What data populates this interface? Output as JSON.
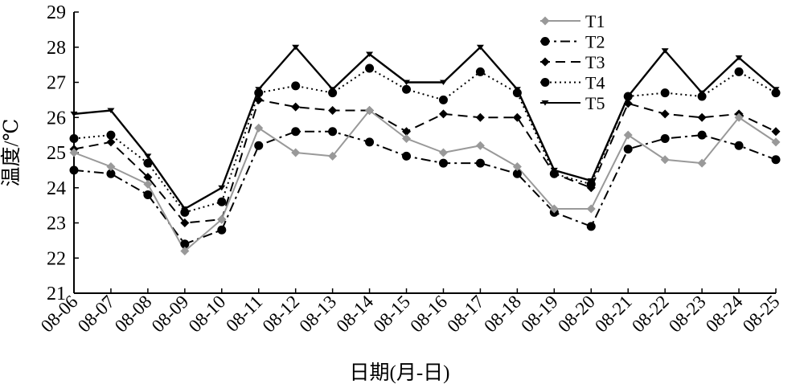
{
  "chart_data": {
    "type": "line",
    "xlabel": "日期(月-日)",
    "ylabel": "温度/℃",
    "ylim": [
      21,
      29
    ],
    "yticks": [
      21,
      22,
      23,
      24,
      25,
      26,
      27,
      28,
      29
    ],
    "categories": [
      "08-06",
      "08-07",
      "08-08",
      "08-09",
      "08-10",
      "08-11",
      "08-12",
      "08-13",
      "08-14",
      "08-15",
      "08-16",
      "08-17",
      "08-18",
      "08-19",
      "08-20",
      "08-21",
      "08-22",
      "08-23",
      "08-24",
      "08-25"
    ],
    "grid": false,
    "legend_position": "top-right",
    "series": [
      {
        "name": "T1",
        "color": "#999999",
        "line_style": "solid",
        "marker": "diamond",
        "values": [
          25.0,
          24.6,
          24.1,
          22.2,
          23.1,
          25.7,
          25.0,
          24.9,
          26.2,
          25.4,
          25.0,
          25.2,
          24.6,
          23.4,
          23.4,
          25.5,
          24.8,
          24.7,
          26.0,
          25.3
        ]
      },
      {
        "name": "T2",
        "color": "#000000",
        "line_style": "dashdot",
        "marker": "circle",
        "values": [
          24.5,
          24.4,
          23.8,
          22.4,
          22.8,
          25.2,
          25.6,
          25.6,
          25.3,
          24.9,
          24.7,
          24.7,
          24.4,
          23.3,
          22.9,
          25.1,
          25.4,
          25.5,
          25.2,
          24.8
        ]
      },
      {
        "name": "T3",
        "color": "#000000",
        "line_style": "dashed",
        "marker": "diamond",
        "values": [
          25.1,
          25.3,
          24.3,
          23.0,
          23.1,
          26.5,
          26.3,
          26.2,
          26.2,
          25.6,
          26.1,
          26.0,
          26.0,
          24.4,
          24.0,
          26.4,
          26.1,
          26.0,
          26.1,
          25.6
        ]
      },
      {
        "name": "T4",
        "color": "#000000",
        "line_style": "dotted",
        "marker": "circle",
        "values": [
          25.4,
          25.5,
          24.7,
          23.3,
          23.6,
          26.7,
          26.9,
          26.7,
          27.4,
          26.8,
          26.5,
          27.3,
          26.7,
          24.4,
          24.1,
          26.6,
          26.7,
          26.6,
          27.3,
          26.7
        ]
      },
      {
        "name": "T5",
        "color": "#000000",
        "line_style": "solid",
        "marker": "triangle",
        "values": [
          26.1,
          26.2,
          24.9,
          23.4,
          24.0,
          26.8,
          28.0,
          26.8,
          27.8,
          27.0,
          27.0,
          28.0,
          26.8,
          24.5,
          24.2,
          26.6,
          27.9,
          26.7,
          27.7,
          26.8
        ]
      }
    ]
  }
}
